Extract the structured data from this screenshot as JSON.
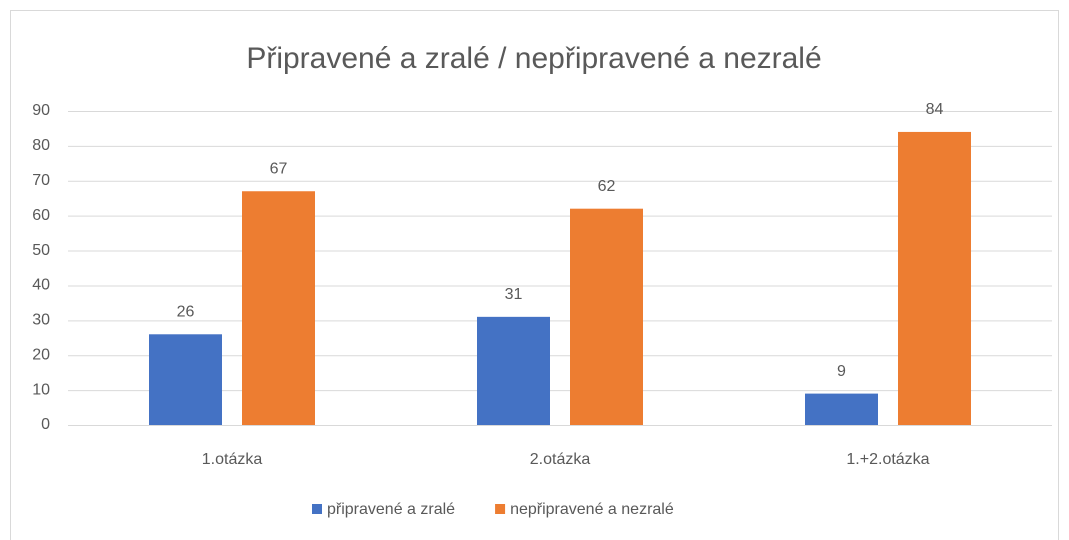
{
  "chart_data": {
    "type": "bar",
    "title": "Připravené a zralé / nepřipravené a nezralé",
    "categories": [
      "1.otázka",
      "2.otázka",
      "1.+2.otázka"
    ],
    "series": [
      {
        "name": "připravené a zralé",
        "color": "#4472c4",
        "values": [
          26,
          31,
          9
        ]
      },
      {
        "name": "nepřipravené a nezralé",
        "color": "#ed7d31",
        "values": [
          67,
          62,
          84
        ]
      }
    ],
    "ylim": [
      0,
      90
    ],
    "yticks": [
      0,
      10,
      20,
      30,
      40,
      50,
      60,
      70,
      80,
      90
    ],
    "grid": true,
    "legend": "bottom"
  }
}
